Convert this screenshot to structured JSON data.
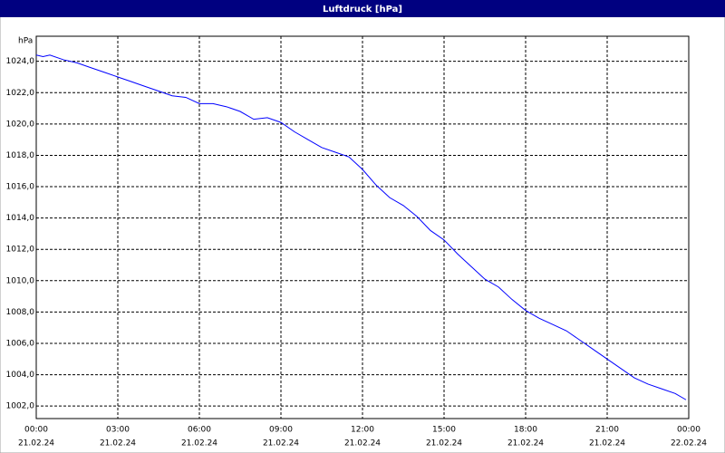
{
  "chart_data": {
    "type": "line",
    "title": "Luftdruck [hPa]",
    "y_unit": "hPa",
    "xlim": [
      0,
      24
    ],
    "ylim": [
      1001.2,
      1025.6
    ],
    "xticks": [
      {
        "value": 0,
        "label": "00:00"
      },
      {
        "value": 3,
        "label": "03:00"
      },
      {
        "value": 6,
        "label": "06:00"
      },
      {
        "value": 9,
        "label": "09:00"
      },
      {
        "value": 12,
        "label": "12:00"
      },
      {
        "value": 15,
        "label": "15:00"
      },
      {
        "value": 18,
        "label": "18:00"
      },
      {
        "value": 21,
        "label": "21:00"
      },
      {
        "value": 24,
        "label": "00:00"
      }
    ],
    "xtick_dates": [
      "21.02.24",
      "21.02.24",
      "21.02.24",
      "21.02.24",
      "21.02.24",
      "21.02.24",
      "21.02.24",
      "21.02.24",
      "22.02.24"
    ],
    "yticks": [
      {
        "value": 1002,
        "label": "1002,0"
      },
      {
        "value": 1004,
        "label": "1004,0"
      },
      {
        "value": 1006,
        "label": "1006,0"
      },
      {
        "value": 1008,
        "label": "1008,0"
      },
      {
        "value": 1010,
        "label": "1010,0"
      },
      {
        "value": 1012,
        "label": "1012,0"
      },
      {
        "value": 1014,
        "label": "1014,0"
      },
      {
        "value": 1016,
        "label": "1016,0"
      },
      {
        "value": 1018,
        "label": "1018,0"
      },
      {
        "value": 1020,
        "label": "1020,0"
      },
      {
        "value": 1022,
        "label": "1022,0"
      },
      {
        "value": 1024,
        "label": "1024,0"
      }
    ],
    "grid": true,
    "x": [
      0,
      0.25,
      0.5,
      1,
      1.5,
      2,
      2.5,
      3,
      3.5,
      4,
      4.5,
      5,
      5.5,
      6,
      6.5,
      7,
      7.5,
      8,
      8.5,
      9,
      9.5,
      10,
      10.5,
      11,
      11.5,
      12,
      12.5,
      13,
      13.5,
      14,
      14.5,
      15,
      15.5,
      16,
      16.5,
      17,
      17.5,
      18,
      18.5,
      19,
      19.5,
      20,
      20.5,
      21,
      21.5,
      22,
      22.5,
      23,
      23.5,
      23.9
    ],
    "series": [
      {
        "color": "#0000ff",
        "values": [
          1024.4,
          1024.3,
          1024.4,
          1024.1,
          1023.9,
          1023.6,
          1023.3,
          1023.0,
          1022.7,
          1022.4,
          1022.1,
          1021.8,
          1021.7,
          1021.3,
          1021.3,
          1021.1,
          1020.8,
          1020.3,
          1020.4,
          1020.1,
          1019.5,
          1019.0,
          1018.5,
          1018.2,
          1017.9,
          1017.1,
          1016.1,
          1015.3,
          1014.8,
          1014.1,
          1013.2,
          1012.6,
          1011.7,
          1010.9,
          1010.1,
          1009.6,
          1008.8,
          1008.1,
          1007.6,
          1007.2,
          1006.8,
          1006.2,
          1005.6,
          1005.0,
          1004.4,
          1003.8,
          1003.4,
          1003.1,
          1002.8,
          1002.4
        ]
      }
    ]
  }
}
